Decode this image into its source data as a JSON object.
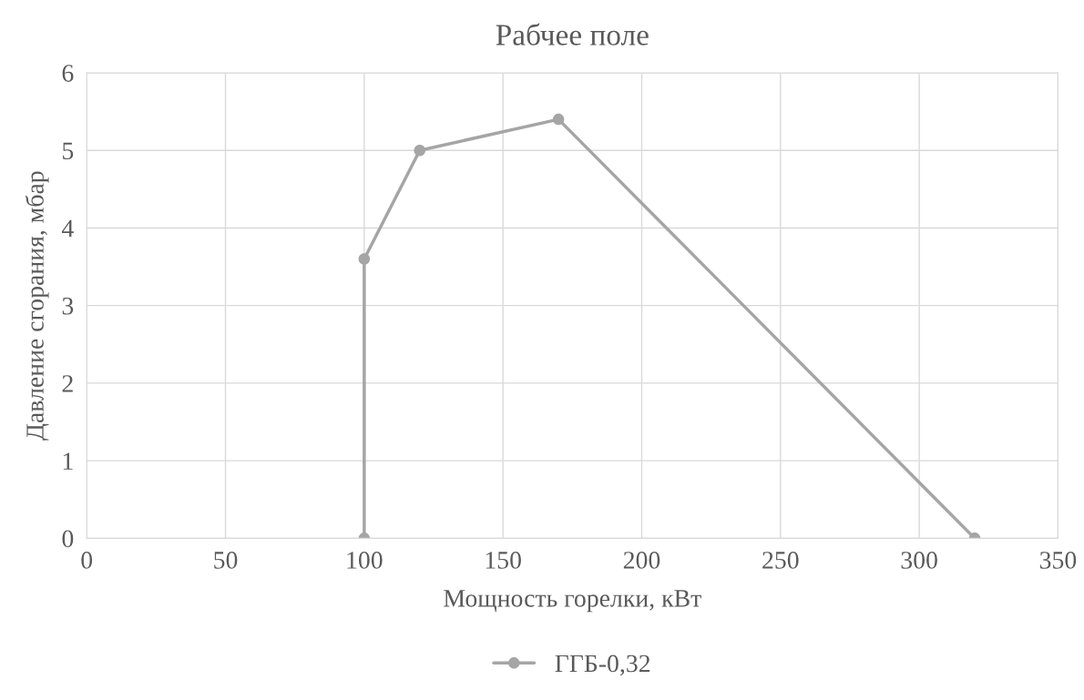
{
  "chart_data": {
    "type": "line",
    "title": "Рабчее поле",
    "xlabel": "Мощность горелки, кВт",
    "ylabel": "Давление сгорания, мбар",
    "x": [
      100,
      100,
      120,
      170,
      320
    ],
    "series": [
      {
        "name": "ГГБ-0,32",
        "color": "#a5a5a5",
        "values": [
          0,
          3.6,
          5,
          5.4,
          0
        ]
      }
    ],
    "xlim": [
      0,
      350
    ],
    "xticks": [
      0,
      50,
      100,
      150,
      200,
      250,
      300,
      350
    ],
    "ylim": [
      0,
      6
    ],
    "yticks": [
      0,
      1,
      2,
      3,
      4,
      5,
      6
    ],
    "grid": true,
    "legend": "bottom",
    "marker": "circle",
    "line_style": "solid"
  }
}
